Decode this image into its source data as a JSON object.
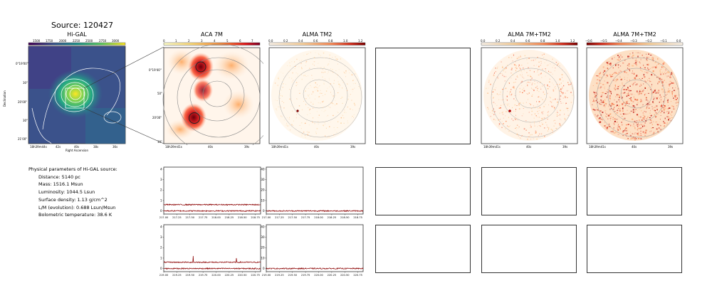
{
  "source_title": "Source: 120427",
  "panels": {
    "higal": {
      "title": "Hi-GAL",
      "colorbar_ticks": [
        "1500",
        "1750",
        "2000",
        "2250",
        "2500",
        "2750",
        "3000"
      ],
      "y_ticks": [
        "0°19'00\"",
        "30\"",
        "20'00\"",
        "30\"",
        "21'00\""
      ],
      "x_ticks": [
        "18h39m44s",
        "42s",
        "40s",
        "38s",
        "36s"
      ],
      "xlabel": "Right Ascension",
      "ylabel": "Declination"
    },
    "aca": {
      "title": "ACA 7M",
      "colorbar_ticks": [
        "0",
        "1",
        "2",
        "3",
        "4",
        "5",
        "6",
        "7"
      ],
      "y_ticks": [
        "0°19'40\"",
        "50\"",
        "20'00\"",
        "10\""
      ],
      "x_ticks": [
        "18h39m41s",
        "40s",
        "39s"
      ]
    },
    "alma": {
      "title": "ALMA TM2",
      "colorbar_ticks": [
        "0.0",
        "0.2",
        "0.4",
        "0.6",
        "0.8",
        "1.0",
        "1.2"
      ],
      "x_ticks": [
        "18h39m41s",
        "40s",
        "39s"
      ]
    },
    "alma_combo": {
      "title": "ALMA 7M+TM2",
      "colorbar_ticks": [
        "0.0",
        "0.2",
        "0.4",
        "0.6",
        "0.8",
        "1.0",
        "1.2"
      ],
      "x_ticks": [
        "18h39m41s",
        "40s",
        "39s"
      ]
    },
    "alma_combo_neg": {
      "title": "ALMA 7M+TM2",
      "colorbar_ticks": [
        "−0.6",
        "−0.5",
        "−0.4",
        "−0.3",
        "−0.2",
        "−0.1",
        "0.0"
      ],
      "x_ticks": [
        "18h39m41s",
        "40s",
        "39s"
      ]
    }
  },
  "params": {
    "heading": "Physical parameters of Hi-GAL source:",
    "distance": "Distance: 5140 pc",
    "mass": "Mass: 1516.1 Msun",
    "luminosity": "Luminosity: 1044.5 Lsun",
    "surface_density": "Surface density: 1.13 g/cm^2",
    "lm": "L/M (evolution): 0.688 Lsun/Msun",
    "tbol": "Bolometric temperature: 38.6 K"
  },
  "colors": {
    "spectrum": "#8b0000",
    "contour_higal": "#ffffff",
    "contour_map": "#888888"
  },
  "chart_data": [
    {
      "type": "line",
      "panel": "ACA 7M spectrum, row 1",
      "x_ticks": [
        "217.00",
        "217.25",
        "217.50",
        "217.75",
        "218.00",
        "218.25",
        "218.50",
        "218.75"
      ],
      "y_ticks": [
        "0",
        "1",
        "2",
        "3",
        "4"
      ],
      "xlim": [
        217.0,
        218.85
      ],
      "ylim": [
        -0.3,
        4.2
      ],
      "series": [
        {
          "values_level": 0.6
        },
        {
          "values_level": 0.0
        }
      ]
    },
    {
      "type": "line",
      "panel": "ALMA TM2 spectrum, row 1",
      "x_ticks": [
        "217.00",
        "217.25",
        "217.50",
        "217.75",
        "218.00",
        "218.25",
        "218.50",
        "218.75"
      ],
      "y_ticks": [
        "0",
        "10",
        "20",
        "30",
        "40"
      ],
      "xlim": [
        217.0,
        218.85
      ],
      "ylim": [
        -3,
        42
      ],
      "series": [
        {
          "values_level": 0.0
        }
      ]
    },
    {
      "type": "line",
      "panel": "ACA 7M spectrum, row 2",
      "x_ticks": [
        "219.00",
        "219.25",
        "219.50",
        "219.75",
        "220.00",
        "220.25",
        "220.50",
        "220.75"
      ],
      "y_ticks": [
        "0",
        "1",
        "2",
        "3",
        "4"
      ],
      "xlim": [
        219.0,
        220.85
      ],
      "ylim": [
        -0.3,
        4.2
      ],
      "series": [
        {
          "values_level": 0.6,
          "peaks": [
            [
              219.56,
              1.2
            ],
            [
              220.39,
              1.0
            ]
          ]
        },
        {
          "values_level": 0.0
        }
      ]
    },
    {
      "type": "line",
      "panel": "ALMA TM2 spectrum, row 2",
      "x_ticks": [
        "219.00",
        "219.25",
        "219.50",
        "219.75",
        "220.00",
        "220.25",
        "220.50",
        "220.75"
      ],
      "y_ticks": [
        "0",
        "10",
        "20",
        "30",
        "40"
      ],
      "xlim": [
        219.0,
        220.85
      ],
      "ylim": [
        -3,
        42
      ],
      "series": [
        {
          "values_level": 0.0
        }
      ]
    }
  ]
}
